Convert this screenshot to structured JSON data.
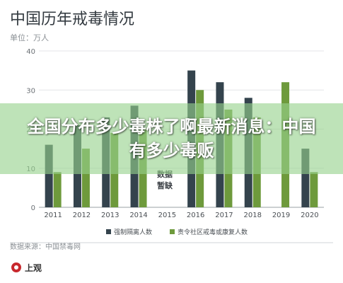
{
  "chart_data": {
    "type": "bar",
    "title": "中国历年戒毒情况",
    "unit_label": "单位：万人",
    "categories": [
      "2011",
      "2012",
      "2013",
      "2014",
      "2015",
      "2016",
      "2017",
      "2018",
      "2019",
      "2020"
    ],
    "series": [
      {
        "name": "强制隔离人数",
        "color": "#34434d",
        "values": [
          16,
          21,
          23,
          26,
          null,
          35,
          32,
          28,
          null,
          15
        ]
      },
      {
        "name": "责令社区戒毒或康复人数",
        "color": "#6e9a3c",
        "values": [
          9,
          15,
          19,
          20,
          null,
          30,
          25,
          23,
          32,
          9
        ]
      }
    ],
    "yticks": [
      0,
      10,
      20,
      30,
      40
    ],
    "ylim": [
      0,
      40
    ],
    "annotation": "数据\n暂缺",
    "source": "数据来源：中国禁毒网",
    "logo_text": "上观"
  },
  "overlay": {
    "headline": "全国分布多少毒株了啊最新消息：中国有多少毒贩"
  }
}
